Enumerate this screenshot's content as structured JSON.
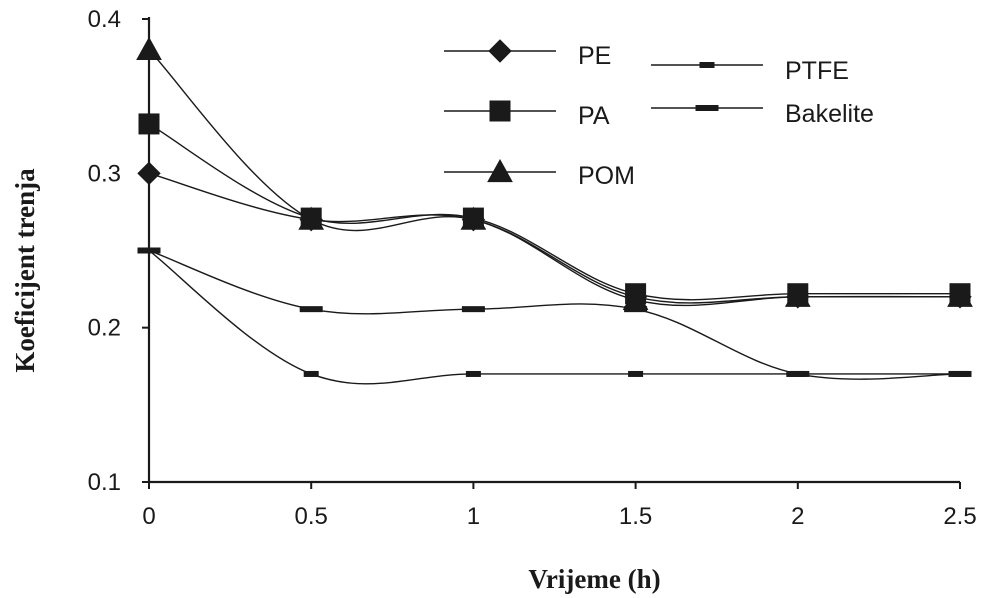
{
  "chart_data": {
    "type": "line",
    "xlabel": "Vrijeme (h)",
    "ylabel": "Koeficijent trenja",
    "xlim": [
      0,
      2.5
    ],
    "ylim": [
      0.1,
      0.4
    ],
    "x_ticks": [
      "0",
      "0.5",
      "1",
      "1.5",
      "2",
      "2.5"
    ],
    "y_ticks": [
      "0.1",
      "0.2",
      "0.3",
      "0.4"
    ],
    "grid": false,
    "legend_position": "top-right",
    "x": [
      0,
      0.5,
      1,
      1.5,
      2,
      2.5
    ],
    "series": [
      {
        "name": "PE",
        "marker": "diamond",
        "values": [
          0.3,
          0.27,
          0.27,
          0.22,
          0.22,
          0.22
        ]
      },
      {
        "name": "PA",
        "marker": "square",
        "values": [
          0.332,
          0.271,
          0.271,
          0.222,
          0.222,
          0.222
        ]
      },
      {
        "name": "POM",
        "marker": "triangle",
        "values": [
          0.38,
          0.27,
          0.27,
          0.218,
          0.22,
          0.22
        ]
      },
      {
        "name": "PTFE",
        "marker": "small-dash",
        "values": [
          0.25,
          0.17,
          0.17,
          0.17,
          0.17,
          0.17
        ]
      },
      {
        "name": "Bakelite",
        "marker": "dash",
        "values": [
          0.25,
          0.212,
          0.212,
          0.212,
          0.17,
          0.17
        ]
      }
    ]
  }
}
